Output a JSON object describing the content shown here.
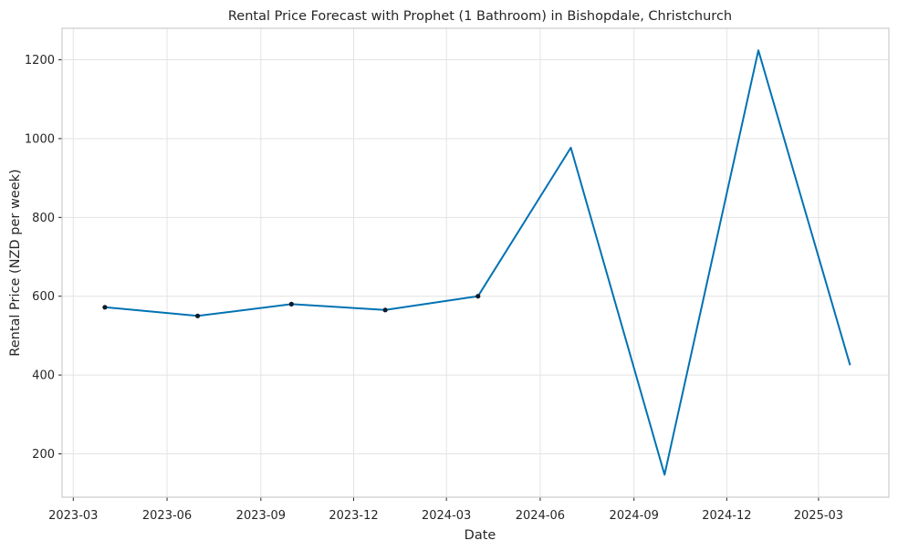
{
  "chart_data": {
    "type": "line",
    "title": "Rental Price Forecast with Prophet (1 Bathroom) in Bishopdale, Christchurch",
    "xlabel": "Date",
    "ylabel": "Rental Price (NZD per week)",
    "x_ticks": [
      "2023-03",
      "2023-06",
      "2023-09",
      "2023-12",
      "2024-03",
      "2024-06",
      "2024-09",
      "2024-12",
      "2025-03"
    ],
    "y_ticks": [
      200,
      400,
      600,
      800,
      1000,
      1200
    ],
    "xlim": [
      "2023-02-18",
      "2025-05-09"
    ],
    "ylim": [
      90,
      1280
    ],
    "grid": true,
    "colors": {
      "forecast": "#0072b2",
      "observed": "#0d1b2a"
    },
    "series": [
      {
        "role": "forecast",
        "x": [
          "2023-04-01",
          "2023-07-01",
          "2023-10-01",
          "2024-01-01",
          "2024-04-01",
          "2024-07-01",
          "2024-10-01",
          "2025-01-01",
          "2025-04-01"
        ],
        "values": [
          572,
          550,
          580,
          565,
          600,
          977,
          147,
          1224,
          425
        ]
      },
      {
        "role": "observed",
        "x": [
          "2023-04-01",
          "2023-07-01",
          "2023-10-01",
          "2024-01-01",
          "2024-04-01"
        ],
        "values": [
          572,
          550,
          580,
          565,
          600
        ]
      }
    ]
  }
}
